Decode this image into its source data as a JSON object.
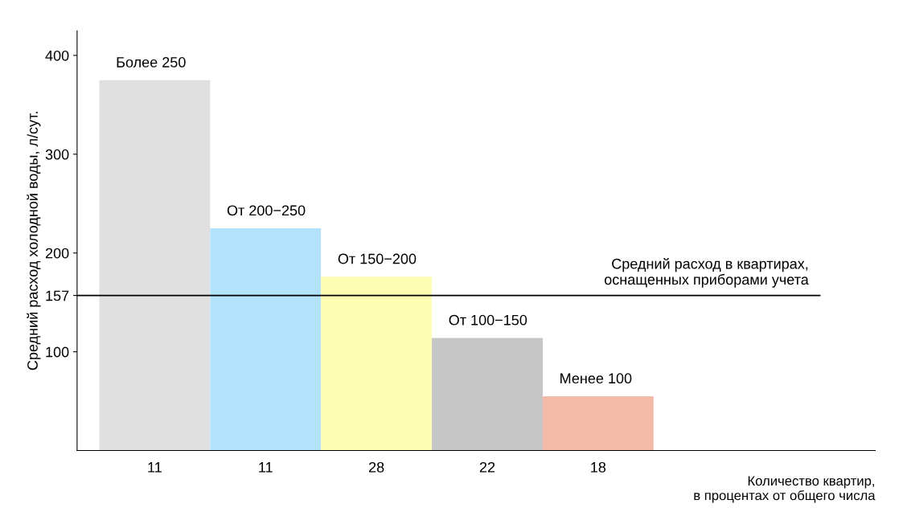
{
  "chart_data": {
    "type": "bar",
    "ylabel": "Средний расход холодной воды, л/сут.",
    "xlabel": "Количество квартир,\nв процентах от общего числа",
    "categories": [
      "11",
      "11",
      "28",
      "22",
      "18"
    ],
    "values": [
      375,
      225,
      176,
      114,
      55
    ],
    "colors": [
      "#e0e0e0",
      "#b3e3fa",
      "#fdfdb3",
      "#c6c6c6",
      "#f3bba7"
    ],
    "ylim": [
      0,
      425
    ],
    "yticks": [
      100,
      157,
      200,
      300,
      400
    ],
    "ref_lines": [
      {
        "axis": "y",
        "value": 157,
        "label": "Средний расход в квартирах,\nоснащенных приборами учета",
        "color": "#000000"
      }
    ],
    "annotations": [
      "Более 250",
      "От 200−250",
      "От 150−200",
      "От 100−150",
      "Менее 100"
    ],
    "grid": false,
    "legend": false
  }
}
